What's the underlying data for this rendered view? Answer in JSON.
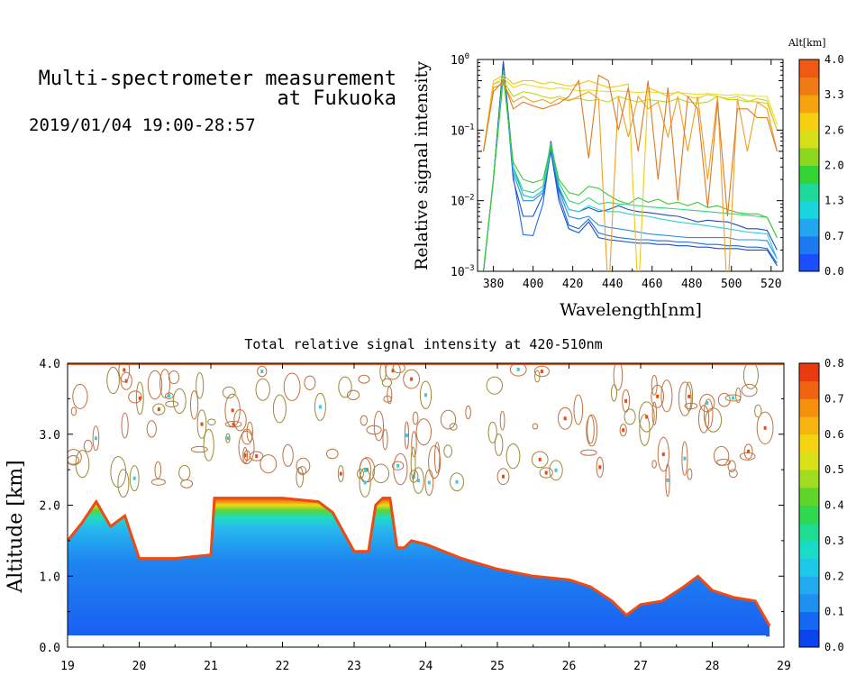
{
  "header": {
    "title_line1": "Multi-spectrometer measurement",
    "title_line2": "at Fukuoka",
    "datetime": "2019/01/04 19:00-28:57"
  },
  "chart_data": [
    {
      "type": "line",
      "xlabel": "Wavelength[nm]",
      "ylabel": "Relative signal intensity",
      "xlim": [
        372,
        526
      ],
      "ylim": [
        0.001,
        1
      ],
      "yscale": "log",
      "x_ticks": [
        380,
        400,
        420,
        440,
        460,
        480,
        500,
        520
      ],
      "y_ticks": [
        {
          "label": "10",
          "exp": "0",
          "value": 1
        },
        {
          "label": "10",
          "exp": "−1",
          "value": 0.1
        },
        {
          "label": "10",
          "exp": "−2",
          "value": 0.01
        },
        {
          "label": "10",
          "exp": "−3",
          "value": 0.001
        }
      ],
      "grid": false,
      "colorbar": {
        "label": "Alt[km]",
        "ticks": [
          "0.0",
          "0.7",
          "1.3",
          "2.0",
          "2.6",
          "3.3",
          "4.0"
        ],
        "colors": [
          "#1a4fff",
          "#1e7af0",
          "#22a6ee",
          "#19d6de",
          "#1fd99a",
          "#33d433",
          "#8fd620",
          "#d6e01a",
          "#f6cf10",
          "#f6a40e",
          "#f07a16",
          "#ee5a14"
        ]
      },
      "x": [
        375,
        380,
        385,
        390,
        395,
        400,
        405,
        409,
        413,
        418,
        423,
        428,
        433,
        438,
        443,
        448,
        453,
        458,
        463,
        468,
        473,
        478,
        483,
        488,
        493,
        498,
        503,
        508,
        513,
        518,
        523
      ],
      "series": [
        {
          "color": "#1450d8",
          "values": [
            0.001,
            0.02,
            0.9,
            0.02,
            0.006,
            0.006,
            0.012,
            0.05,
            0.01,
            0.004,
            0.0035,
            0.005,
            0.003,
            0.0028,
            0.0027,
            0.0026,
            0.0025,
            0.0025,
            0.0024,
            0.0024,
            0.0023,
            0.0023,
            0.0022,
            0.0022,
            0.0021,
            0.0021,
            0.0021,
            0.002,
            0.002,
            0.002,
            0.0012
          ]
        },
        {
          "color": "#1e6ae0",
          "values": [
            0.001,
            0.02,
            0.85,
            0.022,
            0.0033,
            0.0032,
            0.009,
            0.055,
            0.012,
            0.0045,
            0.004,
            0.0055,
            0.0035,
            0.0032,
            0.003,
            0.0029,
            0.0028,
            0.0028,
            0.0027,
            0.0027,
            0.0026,
            0.0026,
            0.0025,
            0.0024,
            0.0024,
            0.0023,
            0.0023,
            0.0022,
            0.0022,
            0.0021,
            0.0013
          ]
        },
        {
          "color": "#2a8fe0",
          "values": [
            0.001,
            0.02,
            0.8,
            0.025,
            0.01,
            0.01,
            0.013,
            0.06,
            0.014,
            0.006,
            0.0055,
            0.006,
            0.0045,
            0.0042,
            0.004,
            0.0038,
            0.0036,
            0.0034,
            0.0033,
            0.0032,
            0.0031,
            0.003,
            0.003,
            0.003,
            0.003,
            0.003,
            0.0028,
            0.0028,
            0.0028,
            0.0027,
            0.0015
          ]
        },
        {
          "color": "#1f4fb8",
          "values": [
            0.001,
            0.02,
            0.95,
            0.03,
            0.012,
            0.011,
            0.014,
            0.07,
            0.015,
            0.0075,
            0.007,
            0.008,
            0.007,
            0.0075,
            0.0085,
            0.0075,
            0.007,
            0.0068,
            0.0065,
            0.0062,
            0.006,
            0.0055,
            0.005,
            0.0053,
            0.0051,
            0.005,
            0.0045,
            0.004,
            0.004,
            0.0038,
            0.002
          ]
        },
        {
          "color": "#30d0d8",
          "values": [
            0.001,
            0.02,
            0.7,
            0.028,
            0.012,
            0.011,
            0.014,
            0.06,
            0.016,
            0.0075,
            0.007,
            0.0085,
            0.0075,
            0.007,
            0.007,
            0.0065,
            0.0062,
            0.006,
            0.0056,
            0.0053,
            0.005,
            0.0048,
            0.0046,
            0.0044,
            0.0042,
            0.004,
            0.0038,
            0.0036,
            0.0035,
            0.0034,
            0.0015
          ]
        },
        {
          "color": "#30d878",
          "values": [
            0.001,
            0.02,
            0.6,
            0.03,
            0.014,
            0.013,
            0.016,
            0.065,
            0.018,
            0.01,
            0.009,
            0.011,
            0.009,
            0.0095,
            0.009,
            0.0088,
            0.0085,
            0.0082,
            0.008,
            0.0078,
            0.0076,
            0.0074,
            0.0072,
            0.007,
            0.0068,
            0.0066,
            0.0064,
            0.0062,
            0.006,
            0.0058,
            0.003
          ]
        },
        {
          "color": "#40c830",
          "values": [
            0.001,
            0.02,
            0.55,
            0.035,
            0.02,
            0.018,
            0.02,
            0.06,
            0.02,
            0.013,
            0.012,
            0.016,
            0.015,
            0.012,
            0.01,
            0.009,
            0.011,
            0.0095,
            0.0105,
            0.009,
            0.0095,
            0.0085,
            0.0095,
            0.008,
            0.0085,
            0.0075,
            0.0068,
            0.0065,
            0.0065,
            0.0058,
            0.003
          ]
        },
        {
          "color": "#b8dc20",
          "values": [
            0.05,
            0.45,
            0.5,
            0.3,
            0.35,
            0.33,
            0.3,
            0.28,
            0.3,
            0.27,
            0.28,
            0.26,
            0.27,
            0.25,
            0.3,
            0.27,
            0.25,
            0.27,
            0.26,
            0.25,
            0.28,
            0.25,
            0.24,
            0.25,
            0.3,
            0.27,
            0.27,
            0.25,
            0.28,
            0.26,
            0.1
          ]
        },
        {
          "color": "#e8e028",
          "values": [
            0.05,
            0.45,
            0.55,
            0.4,
            0.45,
            0.42,
            0.4,
            0.38,
            0.4,
            0.38,
            0.36,
            0.37,
            0.36,
            0.35,
            0.36,
            0.35,
            0.34,
            0.35,
            0.34,
            0.33,
            0.34,
            0.33,
            0.32,
            0.33,
            0.32,
            0.31,
            0.32,
            0.31,
            0.3,
            0.3,
            0.12
          ]
        },
        {
          "color": "#f0c818",
          "values": [
            0.05,
            0.5,
            0.6,
            0.45,
            0.5,
            0.5,
            0.45,
            0.48,
            0.45,
            0.42,
            0.45,
            0.5,
            0.45,
            0.4,
            0.42,
            0.45,
            0.0004,
            0.4,
            0.35,
            0.3,
            0.35,
            0.3,
            0.28,
            0.32,
            0.3,
            0.28,
            0.3,
            0.26,
            0.25,
            0.24,
            0.1
          ]
        },
        {
          "color": "#f0a020",
          "values": [
            0.05,
            0.4,
            0.45,
            0.25,
            0.3,
            0.25,
            0.27,
            0.24,
            0.28,
            0.26,
            0.3,
            0.35,
            0.28,
            0.0004,
            0.3,
            0.08,
            0.3,
            0.2,
            0.25,
            0.08,
            0.3,
            0.05,
            0.3,
            0.02,
            0.3,
            0.0004,
            0.28,
            0.05,
            0.25,
            0.2,
            0.05
          ]
        },
        {
          "color": "#e07820",
          "values": [
            0.05,
            0.35,
            0.5,
            0.2,
            0.25,
            0.22,
            0.2,
            0.22,
            0.24,
            0.3,
            0.5,
            0.04,
            0.6,
            0.5,
            0.1,
            0.4,
            0.05,
            0.5,
            0.02,
            0.4,
            0.01,
            0.3,
            0.2,
            0.008,
            0.25,
            0.006,
            0.2,
            0.2,
            0.15,
            0.15,
            0.05
          ]
        }
      ]
    },
    {
      "type": "heatmap",
      "title": "Total relative signal intensity at 420-510nm",
      "xlabel": "",
      "ylabel": "Altitude [km]",
      "xlim": [
        19,
        29
      ],
      "ylim": [
        0,
        4
      ],
      "x_ticks": [
        "19",
        "20",
        "21",
        "22",
        "23",
        "24",
        "25",
        "26",
        "27",
        "28",
        "29"
      ],
      "y_ticks": [
        "0.0",
        "1.0",
        "2.0",
        "3.0",
        "4.0"
      ],
      "colorbar": {
        "ticks": [
          "0.0",
          "0.1",
          "0.2",
          "0.3",
          "0.4",
          "0.5",
          "0.6",
          "0.7",
          "0.8"
        ],
        "colors": [
          "#0a44f0",
          "#1468f2",
          "#1e90f0",
          "#22aaf0",
          "#1ec8e8",
          "#18dcc8",
          "#1edc90",
          "#30d850",
          "#60d428",
          "#a0dc20",
          "#d8e018",
          "#f4d410",
          "#f6b40e",
          "#f4900c",
          "#ee6410",
          "#e83c10"
        ]
      },
      "boundary_layer_top": {
        "time": [
          19.0,
          19.2,
          19.4,
          19.6,
          19.8,
          20.0,
          20.5,
          21.0,
          21.05,
          21.5,
          22.0,
          22.5,
          22.7,
          23.0,
          23.2,
          23.3,
          23.4,
          23.5,
          23.6,
          23.7,
          23.8,
          24.0,
          24.5,
          25.0,
          25.5,
          26.0,
          26.3,
          26.6,
          26.8,
          27.0,
          27.3,
          27.6,
          27.8,
          28.0,
          28.3,
          28.6,
          28.8
        ],
        "altitude": [
          1.5,
          1.75,
          2.05,
          1.7,
          1.85,
          1.25,
          1.25,
          1.3,
          2.1,
          2.1,
          2.1,
          2.05,
          1.9,
          1.35,
          1.35,
          2.0,
          2.1,
          2.1,
          1.4,
          1.4,
          1.5,
          1.45,
          1.25,
          1.1,
          1.0,
          0.95,
          0.85,
          0.65,
          0.45,
          0.6,
          0.65,
          0.85,
          1.0,
          0.8,
          0.7,
          0.65,
          0.3
        ],
        "value_units": "km"
      },
      "aerosol_layer_bottom_km": 0.15
    }
  ]
}
